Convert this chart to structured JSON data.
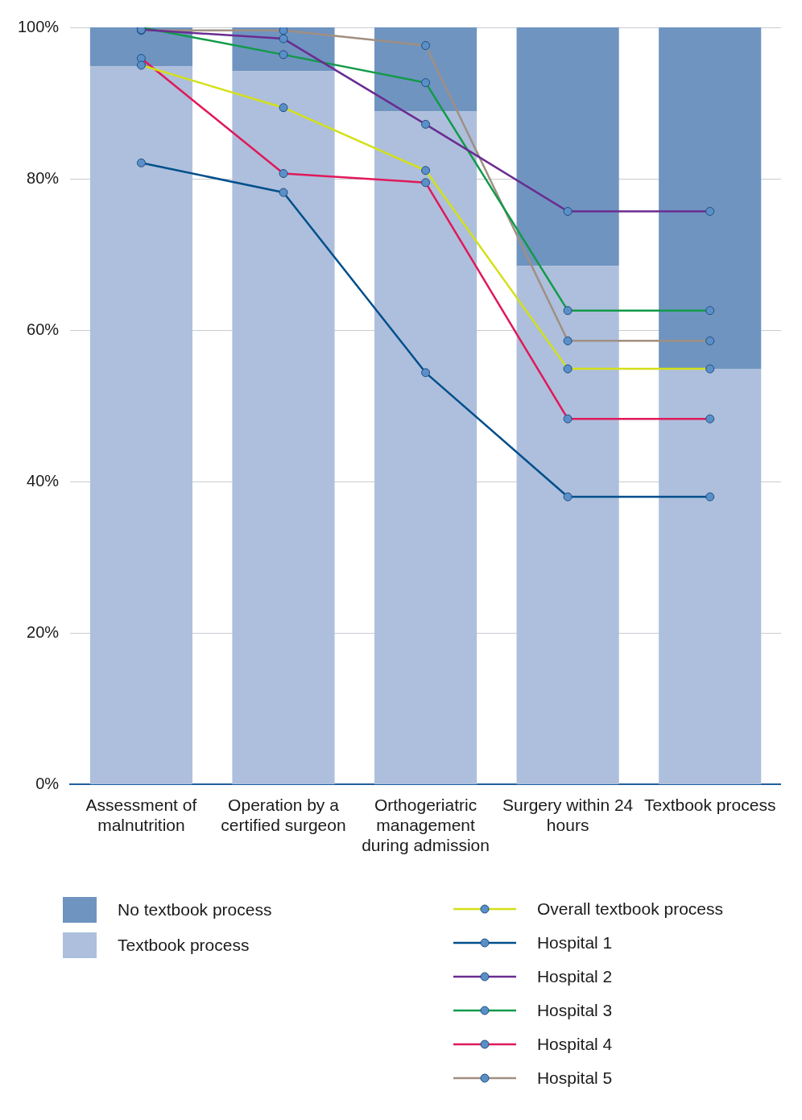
{
  "chart_data": {
    "type": "bar",
    "stacked": true,
    "categories": [
      "Assessment of malnutrition",
      "Operation by a certified surgeon",
      "Orthogeriatric management during admission",
      "Surgery within 24 hours",
      "Textbook process"
    ],
    "series": [
      {
        "name": "Textbook process",
        "color": "#adbfdc",
        "values": [
          94.9,
          94.2,
          88.9,
          68.5,
          54.9
        ]
      },
      {
        "name": "No textbook process",
        "color": "#6f94c0",
        "values": [
          5.1,
          5.8,
          11.1,
          31.5,
          45.1
        ]
      },
      {
        "type": "line",
        "name": "Overall textbook process",
        "color": "#d4e017",
        "values": [
          95.0,
          89.4,
          81.1,
          54.9,
          54.9
        ]
      },
      {
        "type": "line",
        "name": "Hospital 1",
        "color": "#004f8c",
        "values": [
          82.1,
          78.2,
          54.4,
          38.0,
          38.0
        ]
      },
      {
        "type": "line",
        "name": "Hospital 2",
        "color": "#6a2c91",
        "values": [
          99.7,
          98.5,
          87.2,
          75.7,
          75.7
        ]
      },
      {
        "type": "line",
        "name": "Hospital 3",
        "color": "#129a48",
        "values": [
          100,
          96.4,
          92.7,
          62.6,
          62.6
        ]
      },
      {
        "type": "line",
        "name": "Hospital 4",
        "color": "#e0195a",
        "values": [
          95.9,
          80.7,
          79.5,
          48.3,
          48.3
        ]
      },
      {
        "type": "line",
        "name": "Hospital 5",
        "color": "#a08f82",
        "values": [
          99.6,
          99.6,
          97.6,
          58.6,
          58.6
        ]
      }
    ],
    "ylim": [
      0,
      100
    ],
    "yticks": [
      {
        "value": 0,
        "label": "0%"
      },
      {
        "value": 20,
        "label": "20%"
      },
      {
        "value": 40,
        "label": "40%"
      },
      {
        "value": 60,
        "label": "60%"
      },
      {
        "value": 80,
        "label": "80%"
      },
      {
        "value": 100,
        "label": "100%"
      }
    ],
    "grid": "y",
    "legend": "bottom",
    "marker": "circle",
    "line_style": "solid"
  }
}
